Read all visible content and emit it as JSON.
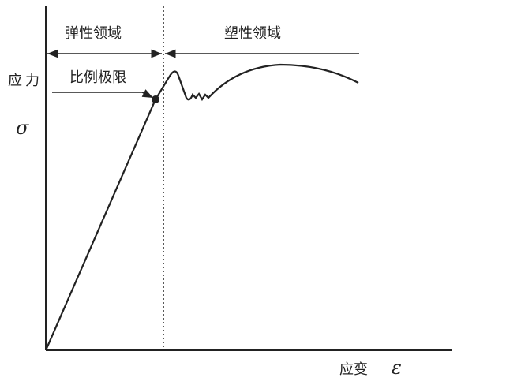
{
  "regions": {
    "elastic": "弹性领域",
    "plastic": "塑性领域"
  },
  "annotation": "比例极限",
  "y_axis": {
    "label": "应力",
    "symbol": "σ"
  },
  "x_axis": {
    "label": "应变",
    "symbol": "ε"
  }
}
